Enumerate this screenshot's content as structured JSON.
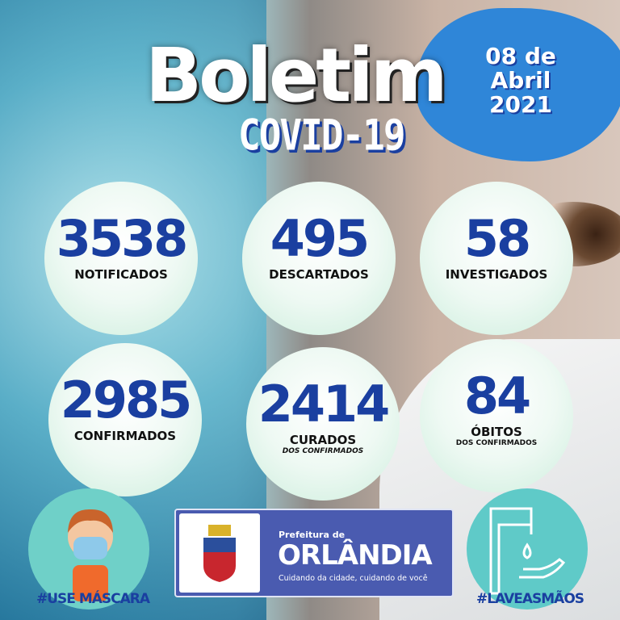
{
  "header": {
    "title": "Boletim",
    "subtitle": "COVID-19",
    "date_lines": [
      "08 de",
      "Abril",
      "2021"
    ]
  },
  "stats": [
    {
      "value": "3538",
      "label": "NOTIFICADOS"
    },
    {
      "value": "495",
      "label": "DESCARTADOS"
    },
    {
      "value": "58",
      "label": "INVESTIGADOS"
    },
    {
      "value": "2985",
      "label": "CONFIRMADOS"
    },
    {
      "value": "2414",
      "label": "CURADOS",
      "note": "DOS CONFIRMADOS"
    },
    {
      "value": "84",
      "label": "ÓBITOS",
      "note": "DOS CONFIRMADOS"
    }
  ],
  "footer": {
    "mask_tag": "#USE MÁSCARA",
    "hands_tag": "#LAVEASMÃOS",
    "pref_line1": "Prefeitura de",
    "pref_name": "ORLÂNDIA",
    "pref_slogan": "Cuidando da cidade, cuidando de você"
  },
  "colors": {
    "accent": "#1a3fa0",
    "blob": "#2f86d8",
    "panel": "#4a5bb0",
    "badge": "#5fcac8"
  }
}
